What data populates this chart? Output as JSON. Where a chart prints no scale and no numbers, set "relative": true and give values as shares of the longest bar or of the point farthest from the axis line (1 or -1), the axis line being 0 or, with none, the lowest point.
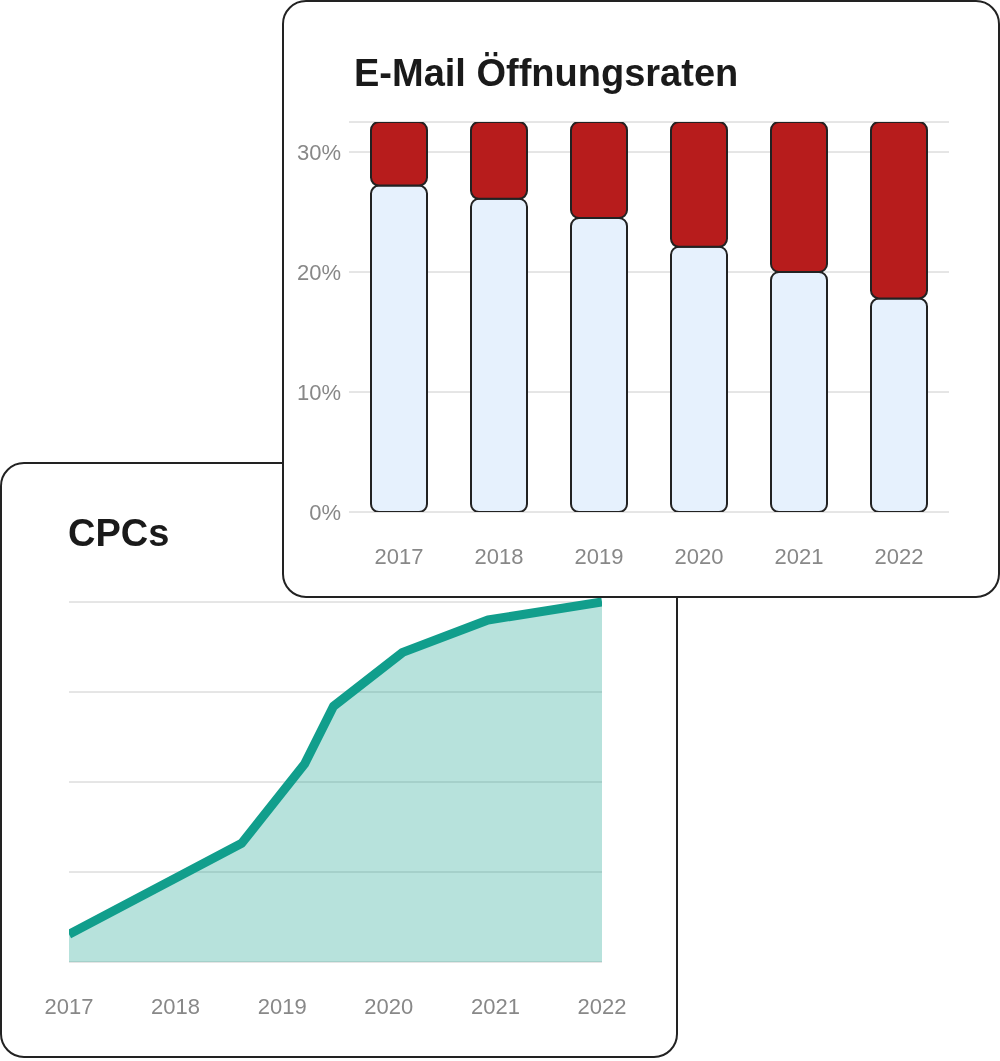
{
  "chart_data": [
    {
      "type": "bar",
      "title": "E-Mail Öffnungsraten",
      "categories": [
        "2017",
        "2018",
        "2019",
        "2020",
        "2021",
        "2022"
      ],
      "stacked": true,
      "series": [
        {
          "color": "#e6f1fd",
          "values": [
            27.2,
            26.1,
            24.5,
            22.1,
            20.0,
            17.8
          ]
        },
        {
          "color": "#b71c1c",
          "values": [
            5.3,
            6.4,
            8.0,
            10.4,
            12.5,
            14.7
          ]
        }
      ],
      "ylim": [
        0,
        32.5
      ],
      "yticks": [
        {
          "value": 0,
          "label": "0%"
        },
        {
          "value": 10,
          "label": "10%"
        },
        {
          "value": 20,
          "label": "20%"
        },
        {
          "value": 30,
          "label": "30%"
        }
      ],
      "grid": "y"
    },
    {
      "type": "area",
      "title": "CPCs",
      "relative": true,
      "x": [
        2017,
        2018.62,
        2019.21,
        2019.48,
        2020.13,
        2020.93,
        2022
      ],
      "series": [
        {
          "color": "#119e8c",
          "values": [
            0.077,
            0.33,
            0.55,
            0.71,
            0.86,
            0.95,
            1
          ]
        }
      ],
      "xlim": [
        2017,
        2022
      ],
      "xticks": [
        2017,
        2018,
        2019,
        2020,
        2021,
        2022
      ],
      "grid": "y"
    }
  ]
}
